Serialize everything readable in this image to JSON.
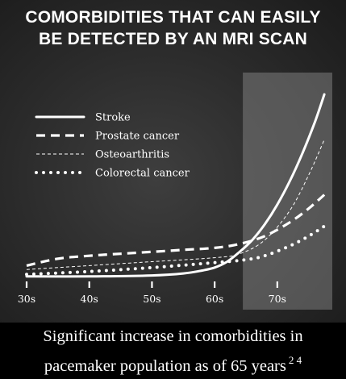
{
  "title": {
    "line1": "COMORBIDITIES THAT CAN EASILY",
    "line2": "BE DETECTED BY AN MRI SCAN"
  },
  "footer": {
    "line1": "Significant increase in comorbidities in",
    "line2": "pacemaker population as of 65 years",
    "refs": "2 4"
  },
  "colors": {
    "background": "#2a2a2a",
    "line": "#ffffff",
    "highlight": "#808080"
  },
  "chart_data": {
    "type": "line",
    "xlim": [
      30,
      78
    ],
    "ylim": [
      0,
      100
    ],
    "x_ticks": [
      {
        "value": 30,
        "label": "30s"
      },
      {
        "value": 40,
        "label": "40s"
      },
      {
        "value": 50,
        "label": "50s"
      },
      {
        "value": 60,
        "label": "60s"
      },
      {
        "value": 70,
        "label": "70s"
      }
    ],
    "highlight_range": [
      64.5,
      78
    ],
    "legend_position": "top-left",
    "series": [
      {
        "name": "Stroke",
        "style": "solid",
        "x": [
          30,
          40,
          50,
          55,
          58,
          60,
          62,
          64,
          66,
          68,
          70,
          72,
          74,
          76,
          77.5
        ],
        "y": [
          0.5,
          0.5,
          1,
          2,
          3.5,
          5,
          8,
          13,
          19,
          27,
          37,
          49,
          63,
          79,
          93
        ]
      },
      {
        "name": "Prostate cancer",
        "style": "dashed",
        "x": [
          30,
          35,
          40,
          45,
          50,
          55,
          60,
          64,
          68,
          72,
          75,
          77.5
        ],
        "y": [
          6,
          9.5,
          11,
          12,
          13,
          14,
          15,
          17,
          21,
          28,
          35,
          42
        ]
      },
      {
        "name": "Osteoarthritis",
        "style": "fine-dashed",
        "x": [
          30,
          40,
          50,
          60,
          64,
          68,
          72,
          75,
          77.5
        ],
        "y": [
          4,
          6,
          8,
          10,
          12,
          19,
          34,
          52,
          70
        ]
      },
      {
        "name": "Colorectal cancer",
        "style": "dotted",
        "x": [
          30,
          40,
          50,
          60,
          65,
          68,
          72,
          75,
          77.5
        ],
        "y": [
          1.5,
          3,
          5,
          7.5,
          9,
          11,
          16,
          21,
          26
        ]
      }
    ]
  }
}
